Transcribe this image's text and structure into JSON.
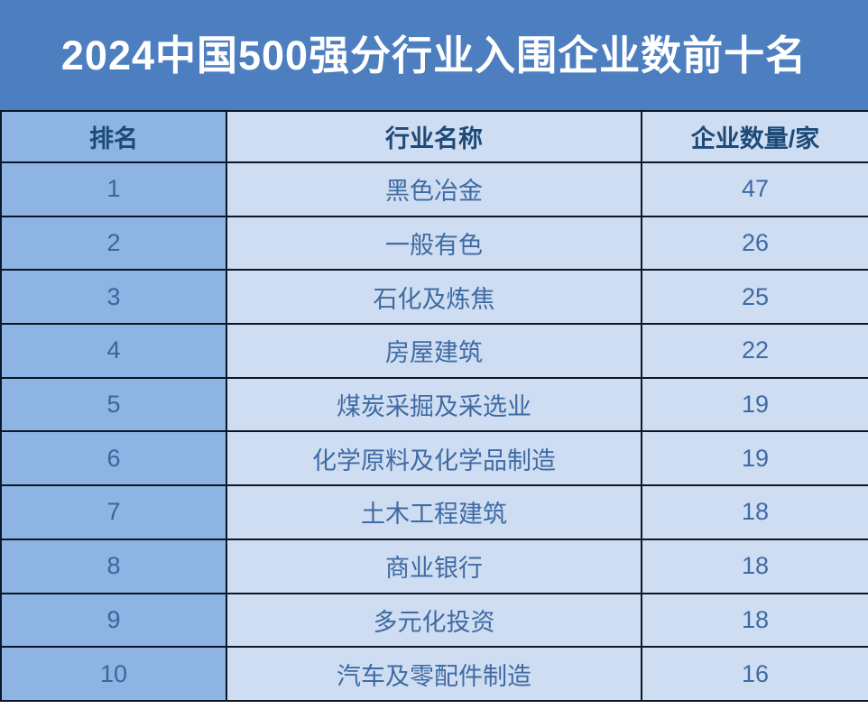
{
  "title": "2024中国500强分行业入围企业数前十名",
  "colors": {
    "banner_bg": "#4d7fc0",
    "rank_column_bg": "#8db4e2",
    "cell_bg": "#cfddf2",
    "border": "#0d1626",
    "title_text": "#ffffff",
    "header_text": "#1d4a78",
    "data_text": "#3e6ba3"
  },
  "table": {
    "columns": [
      {
        "key": "rank",
        "label": "排名"
      },
      {
        "key": "industry",
        "label": "行业名称"
      },
      {
        "key": "count",
        "label": "企业数量/家"
      }
    ],
    "rows": [
      {
        "rank": "1",
        "industry": "黑色冶金",
        "count": "47"
      },
      {
        "rank": "2",
        "industry": "一般有色",
        "count": "26"
      },
      {
        "rank": "3",
        "industry": "石化及炼焦",
        "count": "25"
      },
      {
        "rank": "4",
        "industry": "房屋建筑",
        "count": "22"
      },
      {
        "rank": "5",
        "industry": "煤炭采掘及采选业",
        "count": "19"
      },
      {
        "rank": "6",
        "industry": "化学原料及化学品制造",
        "count": "19"
      },
      {
        "rank": "7",
        "industry": "土木工程建筑",
        "count": "18"
      },
      {
        "rank": "8",
        "industry": "商业银行",
        "count": "18"
      },
      {
        "rank": "9",
        "industry": "多元化投资",
        "count": "18"
      },
      {
        "rank": "10",
        "industry": "汽车及零配件制造",
        "count": "16"
      }
    ]
  },
  "chart_data": {
    "type": "table",
    "title": "2024中国500强分行业入围企业数前十名",
    "columns": [
      "排名",
      "行业名称",
      "企业数量/家"
    ],
    "rows": [
      [
        1,
        "黑色冶金",
        47
      ],
      [
        2,
        "一般有色",
        26
      ],
      [
        3,
        "石化及炼焦",
        25
      ],
      [
        4,
        "房屋建筑",
        22
      ],
      [
        5,
        "煤炭采掘及采选业",
        19
      ],
      [
        6,
        "化学原料及化学品制造",
        19
      ],
      [
        7,
        "土木工程建筑",
        18
      ],
      [
        8,
        "商业银行",
        18
      ],
      [
        9,
        "多元化投资",
        18
      ],
      [
        10,
        "汽车及零配件制造",
        16
      ]
    ]
  }
}
